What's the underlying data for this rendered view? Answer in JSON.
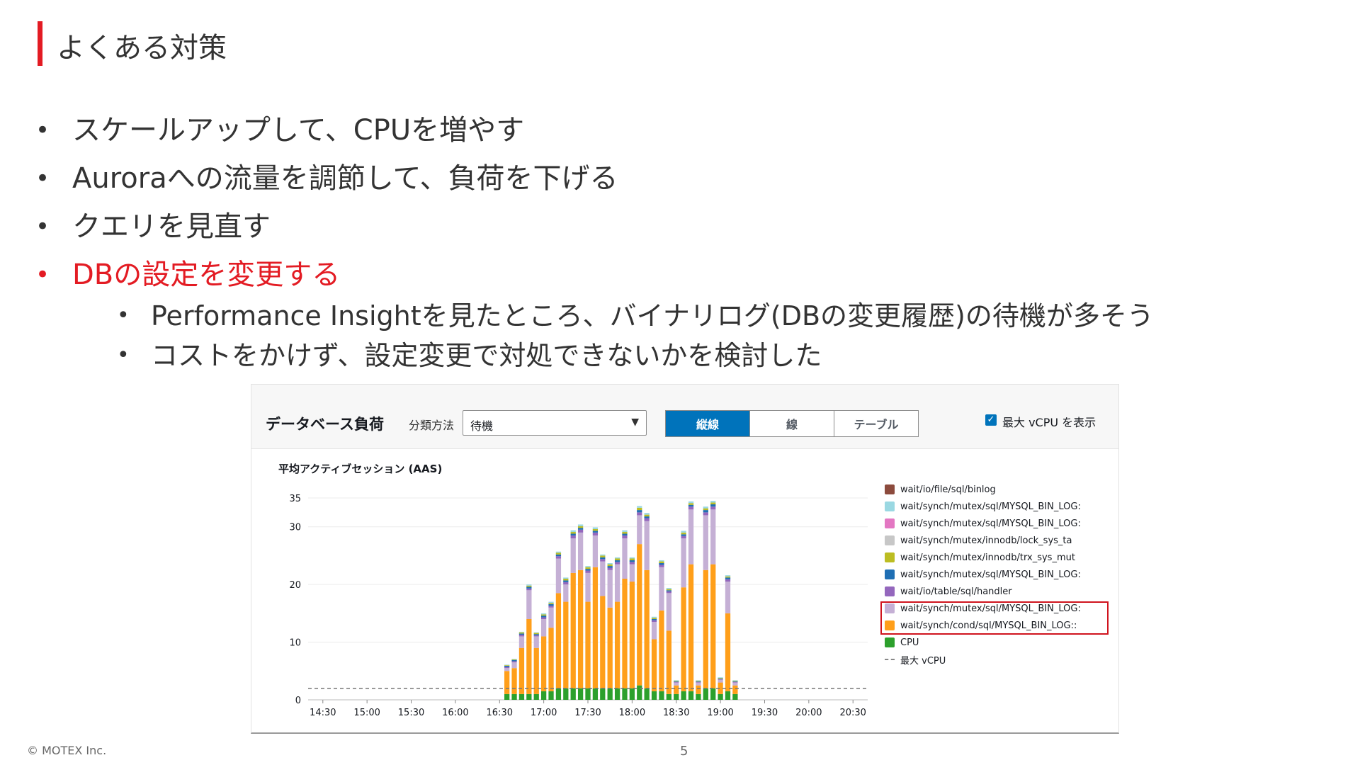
{
  "slide": {
    "title": "よくある対策",
    "bullets": [
      "スケールアップして、CPUを増やす",
      "Auroraへの流量を調節して、負荷を下げる",
      "クエリを見直す",
      "DBの設定を変更する"
    ],
    "sub_bullets": [
      "Performance Insightを見たところ、バイナリログ(DBの変更履歴)の待機が多そう",
      "コストをかけず、設定変更で対処できないかを検討した"
    ],
    "bullet_marker": "•",
    "accent_color": "#e31b23",
    "footer_copyright": "© MOTEX Inc.",
    "page_number": "5"
  },
  "panel": {
    "title": "データベース負荷",
    "group_label": "分類方法",
    "group_select_value": "待機",
    "dropdown_icon": "triangle-down-icon",
    "view_tabs": [
      "縦線",
      "線",
      "テーブル"
    ],
    "active_view": "縦線",
    "show_max_vcpu_checked": true,
    "show_max_vcpu_label": "最大 vCPU を表示",
    "y_axis_label": "平均アクティブセッション (AAS)"
  },
  "legend": [
    {
      "label": "wait/io/file/sql/binlog",
      "color": "#8c4b3d"
    },
    {
      "label": "wait/synch/mutex/sql/MYSQL_BIN_LOG:",
      "color": "#9ad8e2"
    },
    {
      "label": "wait/synch/mutex/sql/MYSQL_BIN_LOG:",
      "color": "#e377c2"
    },
    {
      "label": "wait/synch/mutex/innodb/lock_sys_ta",
      "color": "#c7c7c7"
    },
    {
      "label": "wait/synch/mutex/innodb/trx_sys_mut",
      "color": "#bcbd22"
    },
    {
      "label": "wait/synch/mutex/sql/MYSQL_BIN_LOG:",
      "color": "#1f6fb4"
    },
    {
      "label": "wait/io/table/sql/handler",
      "color": "#9467bd"
    },
    {
      "label": "wait/synch/mutex/sql/MYSQL_BIN_LOG:",
      "color": "#c5b0d5"
    },
    {
      "label": "wait/synch/cond/sql/MYSQL_BIN_LOG::",
      "color": "#ff9f1a"
    },
    {
      "label": "CPU",
      "color": "#2ca02c"
    },
    {
      "label": "最大 vCPU",
      "color": "#888888"
    }
  ],
  "chart_data": {
    "type": "bar",
    "stacked": true,
    "ylim": [
      0,
      35
    ],
    "yticks": [
      0,
      10,
      20,
      30,
      35
    ],
    "xticks": [
      "14:30",
      "15:00",
      "15:30",
      "16:00",
      "16:30",
      "17:00",
      "17:30",
      "18:00",
      "18:30",
      "19:00",
      "19:30",
      "20:00",
      "20:30"
    ],
    "x_start": "14:20",
    "x_end": "20:40",
    "interval_minutes": 5,
    "max_vcpu": 2,
    "series_colors": {
      "CPU": "#2ca02c",
      "cond_bin_log": "#ff9f1a",
      "mutex_bin_log": "#c5b0d5",
      "handler": "#9467bd",
      "mutex_bin_log_2": "#1f6fb4",
      "trx_sys": "#bcbd22",
      "other": "#9ad8e2"
    },
    "bars": [
      {
        "x": "16:35",
        "CPU": 1.0,
        "cond_bin_log": 4.0,
        "mutex_bin_log": 0.5,
        "handler": 0.2,
        "mutex_bin_log_2": 0.2,
        "trx_sys": 0.1,
        "other": 0.1
      },
      {
        "x": "16:40",
        "CPU": 1.0,
        "cond_bin_log": 4.5,
        "mutex_bin_log": 1.0,
        "handler": 0.2,
        "mutex_bin_log_2": 0.2,
        "trx_sys": 0.1,
        "other": 0.1
      },
      {
        "x": "16:45",
        "CPU": 1.0,
        "cond_bin_log": 8.0,
        "mutex_bin_log": 2.0,
        "handler": 0.3,
        "mutex_bin_log_2": 0.2,
        "trx_sys": 0.2,
        "other": 0.1
      },
      {
        "x": "16:50",
        "CPU": 1.0,
        "cond_bin_log": 13.0,
        "mutex_bin_log": 5.0,
        "handler": 0.3,
        "mutex_bin_log_2": 0.3,
        "trx_sys": 0.2,
        "other": 0.2
      },
      {
        "x": "16:55",
        "CPU": 1.0,
        "cond_bin_log": 8.0,
        "mutex_bin_log": 2.0,
        "handler": 0.2,
        "mutex_bin_log_2": 0.2,
        "trx_sys": 0.2,
        "other": 0.1
      },
      {
        "x": "17:00",
        "CPU": 1.5,
        "cond_bin_log": 9.5,
        "mutex_bin_log": 3.0,
        "handler": 0.3,
        "mutex_bin_log_2": 0.3,
        "trx_sys": 0.2,
        "other": 0.2
      },
      {
        "x": "17:05",
        "CPU": 1.5,
        "cond_bin_log": 11.0,
        "mutex_bin_log": 3.5,
        "handler": 0.3,
        "mutex_bin_log_2": 0.3,
        "trx_sys": 0.2,
        "other": 0.2
      },
      {
        "x": "17:10",
        "CPU": 2.0,
        "cond_bin_log": 16.5,
        "mutex_bin_log": 6.0,
        "handler": 0.4,
        "mutex_bin_log_2": 0.3,
        "trx_sys": 0.3,
        "other": 0.2
      },
      {
        "x": "17:15",
        "CPU": 2.0,
        "cond_bin_log": 15.0,
        "mutex_bin_log": 3.0,
        "handler": 0.4,
        "mutex_bin_log_2": 0.3,
        "trx_sys": 0.3,
        "other": 0.2
      },
      {
        "x": "17:20",
        "CPU": 2.0,
        "cond_bin_log": 20.0,
        "mutex_bin_log": 6.0,
        "handler": 0.5,
        "mutex_bin_log_2": 0.3,
        "trx_sys": 0.3,
        "other": 0.3
      },
      {
        "x": "17:25",
        "CPU": 2.0,
        "cond_bin_log": 20.5,
        "mutex_bin_log": 6.5,
        "handler": 0.5,
        "mutex_bin_log_2": 0.3,
        "trx_sys": 0.3,
        "other": 0.3
      },
      {
        "x": "17:30",
        "CPU": 2.0,
        "cond_bin_log": 15.0,
        "mutex_bin_log": 5.0,
        "handler": 0.4,
        "mutex_bin_log_2": 0.3,
        "trx_sys": 0.3,
        "other": 0.2
      },
      {
        "x": "17:35",
        "CPU": 2.0,
        "cond_bin_log": 21.0,
        "mutex_bin_log": 5.5,
        "handler": 0.5,
        "mutex_bin_log_2": 0.3,
        "trx_sys": 0.3,
        "other": 0.3
      },
      {
        "x": "17:40",
        "CPU": 2.0,
        "cond_bin_log": 16.0,
        "mutex_bin_log": 6.0,
        "handler": 0.4,
        "mutex_bin_log_2": 0.3,
        "trx_sys": 0.3,
        "other": 0.2
      },
      {
        "x": "17:45",
        "CPU": 2.0,
        "cond_bin_log": 14.0,
        "mutex_bin_log": 6.5,
        "handler": 0.4,
        "mutex_bin_log_2": 0.3,
        "trx_sys": 0.3,
        "other": 0.2
      },
      {
        "x": "17:50",
        "CPU": 2.0,
        "cond_bin_log": 15.0,
        "mutex_bin_log": 6.5,
        "handler": 0.4,
        "mutex_bin_log_2": 0.3,
        "trx_sys": 0.3,
        "other": 0.2
      },
      {
        "x": "17:55",
        "CPU": 2.0,
        "cond_bin_log": 19.0,
        "mutex_bin_log": 7.0,
        "handler": 0.5,
        "mutex_bin_log_2": 0.3,
        "trx_sys": 0.3,
        "other": 0.3
      },
      {
        "x": "18:00",
        "CPU": 2.0,
        "cond_bin_log": 18.5,
        "mutex_bin_log": 3.0,
        "handler": 0.4,
        "mutex_bin_log_2": 0.3,
        "trx_sys": 0.3,
        "other": 0.2
      },
      {
        "x": "18:05",
        "CPU": 2.5,
        "cond_bin_log": 24.5,
        "mutex_bin_log": 5.0,
        "handler": 0.5,
        "mutex_bin_log_2": 0.4,
        "trx_sys": 0.4,
        "other": 0.3
      },
      {
        "x": "18:10",
        "CPU": 2.0,
        "cond_bin_log": 20.5,
        "mutex_bin_log": 8.5,
        "handler": 0.5,
        "mutex_bin_log_2": 0.3,
        "trx_sys": 0.3,
        "other": 0.3
      },
      {
        "x": "18:15",
        "CPU": 1.5,
        "cond_bin_log": 9.0,
        "mutex_bin_log": 3.0,
        "handler": 0.3,
        "mutex_bin_log_2": 0.2,
        "trx_sys": 0.2,
        "other": 0.2
      },
      {
        "x": "18:20",
        "CPU": 1.5,
        "cond_bin_log": 14.0,
        "mutex_bin_log": 7.5,
        "handler": 0.4,
        "mutex_bin_log_2": 0.3,
        "trx_sys": 0.3,
        "other": 0.2
      },
      {
        "x": "18:25",
        "CPU": 1.0,
        "cond_bin_log": 11.0,
        "mutex_bin_log": 6.5,
        "handler": 0.3,
        "mutex_bin_log_2": 0.2,
        "trx_sys": 0.2,
        "other": 0.2
      },
      {
        "x": "18:30",
        "CPU": 1.0,
        "cond_bin_log": 1.5,
        "mutex_bin_log": 0.5,
        "handler": 0.1,
        "mutex_bin_log_2": 0.1,
        "trx_sys": 0.1,
        "other": 0.1
      },
      {
        "x": "18:35",
        "CPU": 1.5,
        "cond_bin_log": 18.0,
        "mutex_bin_log": 8.5,
        "handler": 0.4,
        "mutex_bin_log_2": 0.3,
        "trx_sys": 0.3,
        "other": 0.3
      },
      {
        "x": "18:40",
        "CPU": 1.5,
        "cond_bin_log": 22.0,
        "mutex_bin_log": 9.5,
        "handler": 0.5,
        "mutex_bin_log_2": 0.3,
        "trx_sys": 0.3,
        "other": 0.3
      },
      {
        "x": "18:45",
        "CPU": 1.0,
        "cond_bin_log": 1.5,
        "mutex_bin_log": 0.5,
        "handler": 0.1,
        "mutex_bin_log_2": 0.1,
        "trx_sys": 0.1,
        "other": 0.1
      },
      {
        "x": "18:50",
        "CPU": 2.0,
        "cond_bin_log": 20.5,
        "mutex_bin_log": 9.5,
        "handler": 0.5,
        "mutex_bin_log_2": 0.4,
        "trx_sys": 0.3,
        "other": 0.3
      },
      {
        "x": "18:55",
        "CPU": 2.0,
        "cond_bin_log": 21.5,
        "mutex_bin_log": 9.5,
        "handler": 0.5,
        "mutex_bin_log_2": 0.4,
        "trx_sys": 0.3,
        "other": 0.3
      },
      {
        "x": "19:00",
        "CPU": 1.0,
        "cond_bin_log": 2.0,
        "mutex_bin_log": 0.5,
        "handler": 0.1,
        "mutex_bin_log_2": 0.1,
        "trx_sys": 0.1,
        "other": 0.1
      },
      {
        "x": "19:05",
        "CPU": 1.5,
        "cond_bin_log": 13.5,
        "mutex_bin_log": 5.5,
        "handler": 0.4,
        "mutex_bin_log_2": 0.3,
        "trx_sys": 0.2,
        "other": 0.2
      },
      {
        "x": "19:10",
        "CPU": 1.0,
        "cond_bin_log": 1.5,
        "mutex_bin_log": 0.5,
        "handler": 0.1,
        "mutex_bin_log_2": 0.1,
        "trx_sys": 0.1,
        "other": 0.1
      }
    ]
  }
}
